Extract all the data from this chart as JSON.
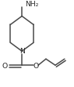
{
  "bg_color": "#ffffff",
  "line_color": "#4a4a4a",
  "text_color": "#2a2a2a",
  "figsize": [
    0.95,
    1.11
  ],
  "dpi": 100,
  "bond_lw": 1.1,
  "font_size": 6.2,
  "NH2_label": "NH₂",
  "N_label": "N",
  "O_label": "O",
  "O2_label": "O"
}
